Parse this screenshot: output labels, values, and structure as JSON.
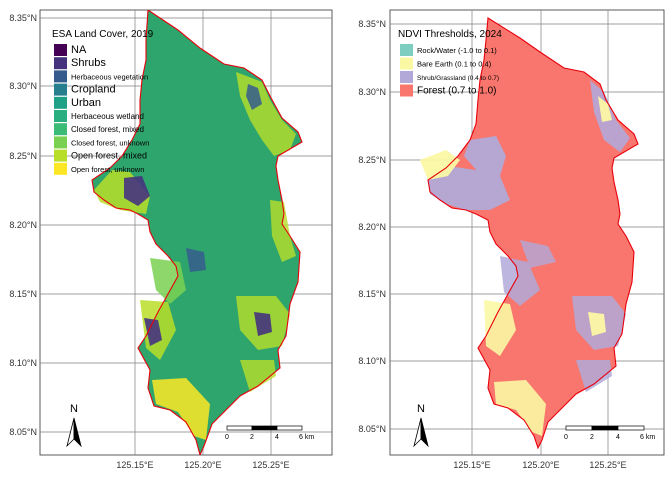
{
  "panels": [
    {
      "legend": {
        "title": "ESA Land Cover, 2019",
        "items": [
          {
            "label": "NA",
            "color": "#440154"
          },
          {
            "label": "Shrubs",
            "color": "#46337e"
          },
          {
            "label": "Herbaceous vegetation",
            "color": "#365c8d"
          },
          {
            "label": "Cropland",
            "color": "#277f8e"
          },
          {
            "label": "Urban",
            "color": "#1fa187"
          },
          {
            "label": "Herbaceous wetland",
            "color": "#29af7f"
          },
          {
            "label": "Closed forest, mixed",
            "color": "#3bbb75"
          },
          {
            "label": "Closed forest, unknown",
            "color": "#7ad151"
          },
          {
            "label": "Open forest, mixed",
            "color": "#b8de29"
          },
          {
            "label": "Open forest, unknown",
            "color": "#fde725"
          }
        ]
      },
      "y_ticks": [
        "8.35°N",
        "8.30°N",
        "8.25°N",
        "8.20°N",
        "8.15°N",
        "8.10°N",
        "8.05°N"
      ],
      "x_ticks": [
        "125.15°E",
        "125.20°E",
        "125.25°E"
      ],
      "scalebar": {
        "labels": [
          "0",
          "2",
          "4",
          "6 km"
        ]
      },
      "north_arrow": {
        "label": "N"
      }
    },
    {
      "legend": {
        "title": "NDVI Thresholds, 2024",
        "items": [
          {
            "label": "Rock/Water (-1.0 to 0.1)",
            "color": "#7ecdc1"
          },
          {
            "label": "Bare Earth (0.1 to 0.4)",
            "color": "#fbf8a4"
          },
          {
            "label": "Shrub/Grassland (0.4 to 0.7)",
            "color": "#b2a9d8"
          },
          {
            "label": "Forest (0.7 to 1.0)",
            "color": "#f8766d"
          }
        ]
      },
      "y_ticks": [
        "8.35°N",
        "8.30°N",
        "8.25°N",
        "8.20°N",
        "8.15°N",
        "8.10°N",
        "8.05°N"
      ],
      "x_ticks": [
        "125.15°E",
        "125.20°E",
        "125.25°E"
      ],
      "scalebar": {
        "labels": [
          "0",
          "2",
          "4",
          "6 km"
        ]
      },
      "north_arrow": {
        "label": "N"
      }
    }
  ],
  "colors": {
    "boundary": "#e8000b",
    "grid": "#7f7f7f",
    "panel_bg": "#ffffff"
  }
}
